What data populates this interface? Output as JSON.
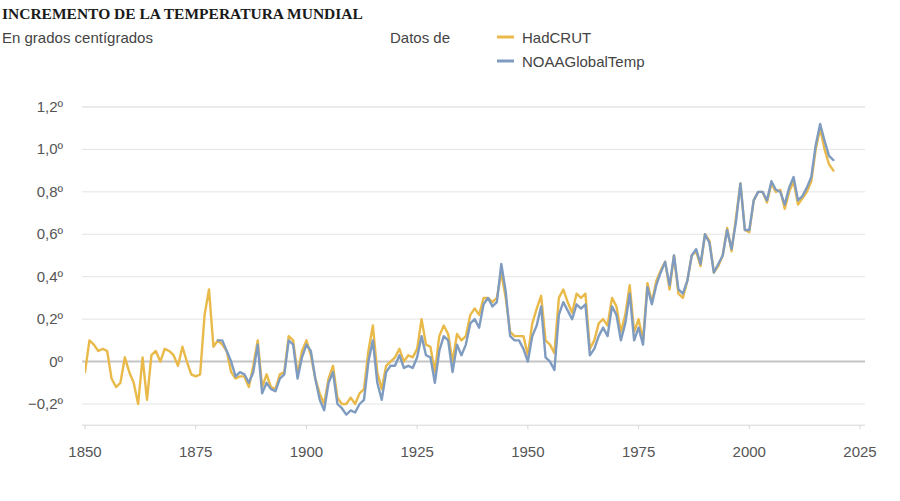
{
  "chart_data": {
    "type": "line",
    "title": "INCREMENTO DE LA TEMPERATURA MUNDIAL",
    "subtitle": "En grados centígrados",
    "legend_title": "Datos de",
    "legend": "top",
    "grid": true,
    "x": [
      1850,
      1851,
      1852,
      1853,
      1854,
      1855,
      1856,
      1857,
      1858,
      1859,
      1860,
      1861,
      1862,
      1863,
      1864,
      1865,
      1866,
      1867,
      1868,
      1869,
      1870,
      1871,
      1872,
      1873,
      1874,
      1875,
      1876,
      1877,
      1878,
      1879,
      1880,
      1881,
      1882,
      1883,
      1884,
      1885,
      1886,
      1887,
      1888,
      1889,
      1890,
      1891,
      1892,
      1893,
      1894,
      1895,
      1896,
      1897,
      1898,
      1899,
      1900,
      1901,
      1902,
      1903,
      1904,
      1905,
      1906,
      1907,
      1908,
      1909,
      1910,
      1911,
      1912,
      1913,
      1914,
      1915,
      1916,
      1917,
      1918,
      1919,
      1920,
      1921,
      1922,
      1923,
      1924,
      1925,
      1926,
      1927,
      1928,
      1929,
      1930,
      1931,
      1932,
      1933,
      1934,
      1935,
      1936,
      1937,
      1938,
      1939,
      1940,
      1941,
      1942,
      1943,
      1944,
      1945,
      1946,
      1947,
      1948,
      1949,
      1950,
      1951,
      1952,
      1953,
      1954,
      1955,
      1956,
      1957,
      1958,
      1959,
      1960,
      1961,
      1962,
      1963,
      1964,
      1965,
      1966,
      1967,
      1968,
      1969,
      1970,
      1971,
      1972,
      1973,
      1974,
      1975,
      1976,
      1977,
      1978,
      1979,
      1980,
      1981,
      1982,
      1983,
      1984,
      1985,
      1986,
      1987,
      1988,
      1989,
      1990,
      1991,
      1992,
      1993,
      1994,
      1995,
      1996,
      1997,
      1998,
      1999,
      2000,
      2001,
      2002,
      2003,
      2004,
      2005,
      2006,
      2007,
      2008,
      2009,
      2010,
      2011,
      2012,
      2013,
      2014,
      2015,
      2016,
      2017,
      2018,
      2019
    ],
    "series": [
      {
        "name": "HadCRUT",
        "color": "#e9b949",
        "values": [
          -0.05,
          0.1,
          0.08,
          0.05,
          0.06,
          0.05,
          -0.08,
          -0.12,
          -0.1,
          0.02,
          -0.05,
          -0.1,
          -0.2,
          0.02,
          -0.18,
          0.03,
          0.05,
          0,
          0.06,
          0.05,
          0.03,
          -0.02,
          0.07,
          0,
          -0.06,
          -0.07,
          -0.06,
          0.22,
          0.34,
          0.07,
          0.1,
          0.08,
          0.05,
          -0.05,
          -0.08,
          -0.07,
          -0.07,
          -0.12,
          -0.02,
          0.1,
          -0.12,
          -0.06,
          -0.12,
          -0.13,
          -0.06,
          -0.05,
          0.12,
          0.1,
          -0.06,
          0.05,
          0.1,
          0.03,
          -0.08,
          -0.15,
          -0.2,
          -0.08,
          -0.02,
          -0.17,
          -0.2,
          -0.2,
          -0.17,
          -0.2,
          -0.15,
          -0.13,
          0.05,
          0.17,
          -0.05,
          -0.13,
          -0.02,
          0,
          0.02,
          0.06,
          0,
          0.03,
          0.02,
          0.06,
          0.2,
          0.08,
          0.07,
          -0.05,
          0.12,
          0.17,
          0.13,
          0,
          0.13,
          0.1,
          0.12,
          0.22,
          0.25,
          0.22,
          0.3,
          0.3,
          0.28,
          0.3,
          0.42,
          0.3,
          0.14,
          0.12,
          0.12,
          0.12,
          0.03,
          0.18,
          0.25,
          0.31,
          0.1,
          0.08,
          0.04,
          0.3,
          0.34,
          0.28,
          0.23,
          0.32,
          0.3,
          0.32,
          0.06,
          0.1,
          0.18,
          0.2,
          0.17,
          0.3,
          0.26,
          0.14,
          0.22,
          0.36,
          0.14,
          0.2,
          0.1,
          0.37,
          0.28,
          0.38,
          0.43,
          0.47,
          0.34,
          0.5,
          0.32,
          0.3,
          0.38,
          0.5,
          0.52,
          0.45,
          0.6,
          0.57,
          0.42,
          0.45,
          0.5,
          0.63,
          0.52,
          0.68,
          0.84,
          0.62,
          0.61,
          0.76,
          0.8,
          0.8,
          0.75,
          0.84,
          0.8,
          0.81,
          0.72,
          0.8,
          0.85,
          0.74,
          0.77,
          0.8,
          0.85,
          1.0,
          1.1,
          1.0,
          0.93,
          0.9
        ]
      },
      {
        "name": "NOAAGlobalTemp",
        "color": "#7f9cc0",
        "values": [
          null,
          null,
          null,
          null,
          null,
          null,
          null,
          null,
          null,
          null,
          null,
          null,
          null,
          null,
          null,
          null,
          null,
          null,
          null,
          null,
          null,
          null,
          null,
          null,
          null,
          null,
          null,
          null,
          null,
          null,
          0.1,
          0.1,
          0.05,
          0,
          -0.07,
          -0.05,
          -0.06,
          -0.1,
          -0.05,
          0.08,
          -0.15,
          -0.1,
          -0.13,
          -0.14,
          -0.08,
          -0.06,
          0.1,
          0.08,
          -0.08,
          0.02,
          0.08,
          0.05,
          -0.08,
          -0.18,
          -0.23,
          -0.1,
          -0.05,
          -0.2,
          -0.22,
          -0.25,
          -0.23,
          -0.24,
          -0.2,
          -0.18,
          0,
          0.1,
          -0.1,
          -0.18,
          -0.05,
          -0.02,
          -0.02,
          0.03,
          -0.03,
          -0.02,
          -0.03,
          0.02,
          0.12,
          0.03,
          0.02,
          -0.1,
          0.05,
          0.12,
          0.1,
          -0.05,
          0.08,
          0.03,
          0.08,
          0.18,
          0.2,
          0.16,
          0.27,
          0.3,
          0.26,
          0.28,
          0.46,
          0.33,
          0.12,
          0.1,
          0.1,
          0.06,
          0,
          0.12,
          0.17,
          0.26,
          0.02,
          0,
          -0.04,
          0.22,
          0.28,
          0.24,
          0.2,
          0.27,
          0.25,
          0.27,
          0.03,
          0.06,
          0.12,
          0.16,
          0.12,
          0.26,
          0.22,
          0.1,
          0.18,
          0.32,
          0.1,
          0.16,
          0.08,
          0.35,
          0.27,
          0.36,
          0.42,
          0.47,
          0.36,
          0.5,
          0.34,
          0.32,
          0.38,
          0.5,
          0.53,
          0.46,
          0.6,
          0.56,
          0.42,
          0.46,
          0.5,
          0.62,
          0.53,
          0.66,
          0.84,
          0.62,
          0.62,
          0.76,
          0.8,
          0.8,
          0.76,
          0.85,
          0.81,
          0.8,
          0.74,
          0.82,
          0.87,
          0.76,
          0.78,
          0.82,
          0.87,
          1.02,
          1.12,
          1.04,
          0.97,
          0.95
        ]
      }
    ],
    "xlim": [
      1850,
      2025
    ],
    "xticks": [
      1850,
      1875,
      1900,
      1925,
      1950,
      1975,
      2000,
      2025
    ],
    "ylim": [
      -0.3,
      1.2
    ],
    "yticks": [
      {
        "value": -0.2,
        "label": "−0,2º"
      },
      {
        "value": 0,
        "label": "0º"
      },
      {
        "value": 0.2,
        "label": "0,2º"
      },
      {
        "value": 0.4,
        "label": "0,4º"
      },
      {
        "value": 0.6,
        "label": "0,6º"
      },
      {
        "value": 0.8,
        "label": "0,8º"
      },
      {
        "value": 1.0,
        "label": "1,0º"
      },
      {
        "value": 1.2,
        "label": "1,2º"
      }
    ]
  }
}
